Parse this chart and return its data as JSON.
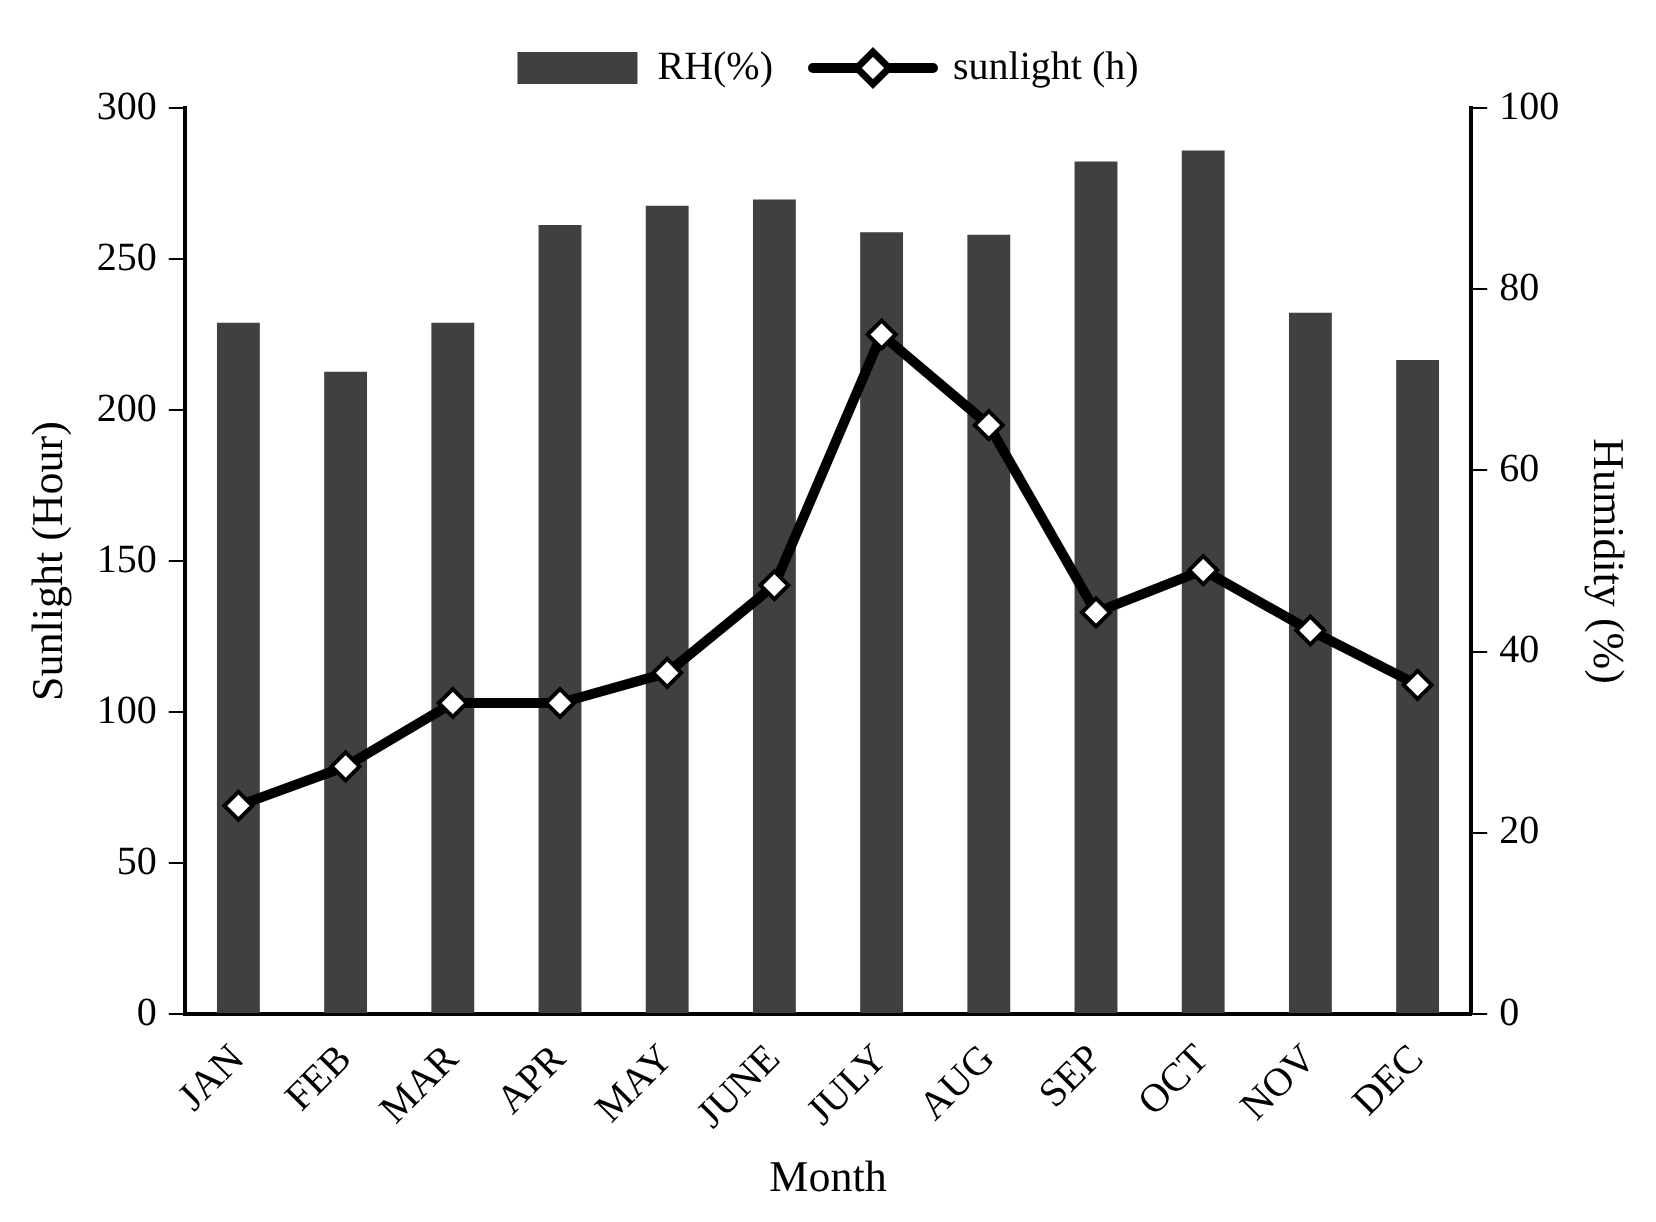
{
  "chart_data": {
    "type": "bar",
    "xlabel": "Month",
    "ylabel": "Sunlight (Hour)",
    "y2label": "Humidity (%)",
    "categories": [
      "JAN",
      "FEB",
      "MAR",
      "APR",
      "MAY",
      "JUNE",
      "JULY",
      "AUG",
      "SEP",
      "OCT",
      "NOV",
      "DEC"
    ],
    "series": [
      {
        "name": "RH(%)",
        "axis": "y2",
        "color": "#404040",
        "values": [
          76.3,
          70.9,
          76.3,
          87.1,
          89.2,
          89.9,
          86.3,
          86.0,
          94.1,
          95.3,
          77.4,
          72.2
        ]
      },
      {
        "name": "sunlight (h)",
        "type": "line",
        "color": "#000000",
        "marker": "diamond",
        "values": [
          69,
          82,
          103,
          103,
          113,
          142,
          225,
          195,
          133,
          147,
          127,
          109
        ]
      }
    ],
    "ylim": [
      0,
      300
    ],
    "yticks": [
      0,
      50,
      100,
      150,
      200,
      250,
      300
    ],
    "y2lim": [
      0,
      100
    ],
    "y2ticks": [
      0,
      20,
      40,
      60,
      80,
      100
    ],
    "grid": false,
    "legend": "top"
  }
}
